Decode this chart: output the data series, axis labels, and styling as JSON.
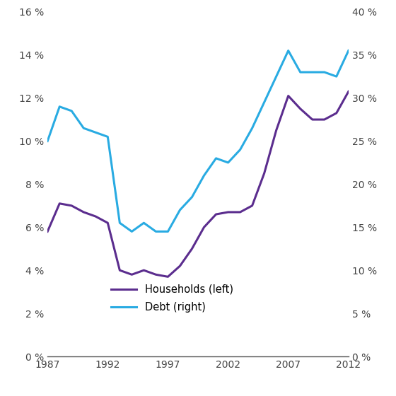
{
  "years": [
    1987,
    1988,
    1989,
    1990,
    1991,
    1992,
    1993,
    1994,
    1995,
    1996,
    1997,
    1998,
    1999,
    2000,
    2001,
    2002,
    2003,
    2004,
    2005,
    2006,
    2007,
    2008,
    2009,
    2010,
    2011,
    2012
  ],
  "households": [
    5.8,
    7.1,
    7.0,
    6.7,
    6.5,
    6.2,
    4.0,
    3.8,
    4.0,
    3.8,
    3.7,
    4.2,
    5.0,
    6.0,
    6.6,
    6.7,
    6.7,
    7.0,
    8.5,
    10.5,
    12.1,
    11.5,
    11.0,
    11.0,
    11.3,
    12.3
  ],
  "debt": [
    25.0,
    29.0,
    28.5,
    26.5,
    26.0,
    25.5,
    15.5,
    14.5,
    15.5,
    14.5,
    14.5,
    17.0,
    18.5,
    21.0,
    23.0,
    22.5,
    24.0,
    26.5,
    29.5,
    32.5,
    35.5,
    33.0,
    33.0,
    33.0,
    32.5,
    35.5
  ],
  "households_color": "#5B2D8E",
  "debt_color": "#29ABE2",
  "left_ylim": [
    0,
    16
  ],
  "right_ylim": [
    0,
    40
  ],
  "left_yticks": [
    0,
    2,
    4,
    6,
    8,
    10,
    12,
    14,
    16
  ],
  "right_yticks": [
    0,
    5,
    10,
    15,
    20,
    25,
    30,
    35,
    40
  ],
  "xticks": [
    1987,
    1992,
    1997,
    2002,
    2007,
    2012
  ],
  "legend_households": "Households (left)",
  "legend_debt": "Debt (right)",
  "line_width": 2.2,
  "background_color": "#ffffff",
  "spine_color": "#555555",
  "tick_label_color": "#444444",
  "tick_label_size": 10
}
